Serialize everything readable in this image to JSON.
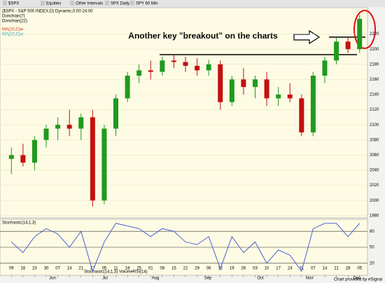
{
  "toolbar": [
    "$SPX",
    "Equities",
    "Other Intervals",
    "SPX Daily",
    "SPY 60 Min"
  ],
  "header": {
    "title": "($SPX - S&P 500 INDEX,D) Dynamic,0:00-24:00",
    "studies": [
      "Donchian(7)",
      "Donchian(22)",
      "MA(10,C)w",
      "MA(10,C)w"
    ]
  },
  "tabs": [
    "Stochastic(14,1,3)",
    "Volume",
    "RSI(14)"
  ],
  "months": [
    "Jun",
    "Jul",
    "Aug",
    "Sep",
    "Oct",
    "Nov",
    "Dec"
  ],
  "footer": "Chart provided by eSignal",
  "chart_data": [
    {
      "type": "candlestick",
      "annotation": "Another key \"breakout\" on the charts",
      "categories": [
        "09",
        "16",
        "23",
        "30",
        "07",
        "14",
        "21",
        "27",
        "05",
        "11",
        "18",
        "25",
        "01",
        "08",
        "15",
        "22",
        "29",
        "06",
        "12",
        "19",
        "26",
        "03",
        "10",
        "17",
        "24",
        "31",
        "07",
        "14",
        "21",
        "28",
        "05"
      ],
      "open": [
        2055,
        2060,
        2050,
        2080,
        2095,
        2100,
        2095,
        2110,
        2000,
        2095,
        2135,
        2165,
        2172,
        2170,
        2185,
        2183,
        2178,
        2172,
        2180,
        2130,
        2160,
        2150,
        2160,
        2135,
        2140,
        2135,
        2090,
        2165,
        2185,
        2210,
        2200
      ],
      "high": [
        2070,
        2075,
        2085,
        2100,
        2110,
        2120,
        2115,
        2120,
        2100,
        2140,
        2170,
        2180,
        2185,
        2190,
        2193,
        2190,
        2188,
        2186,
        2185,
        2165,
        2175,
        2165,
        2170,
        2150,
        2155,
        2140,
        2170,
        2190,
        2215,
        2215,
        2245
      ],
      "low": [
        2035,
        2045,
        2040,
        2070,
        2080,
        2085,
        2080,
        1992,
        1995,
        2085,
        2130,
        2155,
        2160,
        2165,
        2175,
        2170,
        2165,
        2165,
        2120,
        2125,
        2140,
        2135,
        2125,
        2125,
        2130,
        2085,
        2085,
        2155,
        2180,
        2195,
        2195
      ],
      "close": [
        2060,
        2050,
        2080,
        2095,
        2100,
        2095,
        2110,
        2000,
        2095,
        2135,
        2165,
        2172,
        2170,
        2185,
        2183,
        2178,
        2172,
        2180,
        2130,
        2160,
        2150,
        2160,
        2135,
        2140,
        2135,
        2090,
        2165,
        2185,
        2210,
        2200,
        2240
      ],
      "up_color": "#1f9a1f",
      "down_color": "#c41010",
      "ylim": [
        1978,
        2252
      ],
      "yticks": [
        1980,
        2000,
        2020,
        2040,
        2060,
        2080,
        2100,
        2120,
        2140,
        2160,
        2180,
        2200,
        2220
      ],
      "grid": true
    },
    {
      "type": "line",
      "title": "Stochastic(14,1,3)",
      "values": [
        60,
        40,
        70,
        85,
        75,
        50,
        80,
        5,
        60,
        95,
        90,
        85,
        70,
        85,
        80,
        60,
        55,
        70,
        10,
        70,
        40,
        60,
        20,
        45,
        35,
        5,
        85,
        95,
        95,
        70,
        95
      ],
      "color": "#3a4fd8",
      "ylim": [
        0,
        100
      ],
      "yticks": [
        20,
        50,
        80
      ]
    }
  ]
}
